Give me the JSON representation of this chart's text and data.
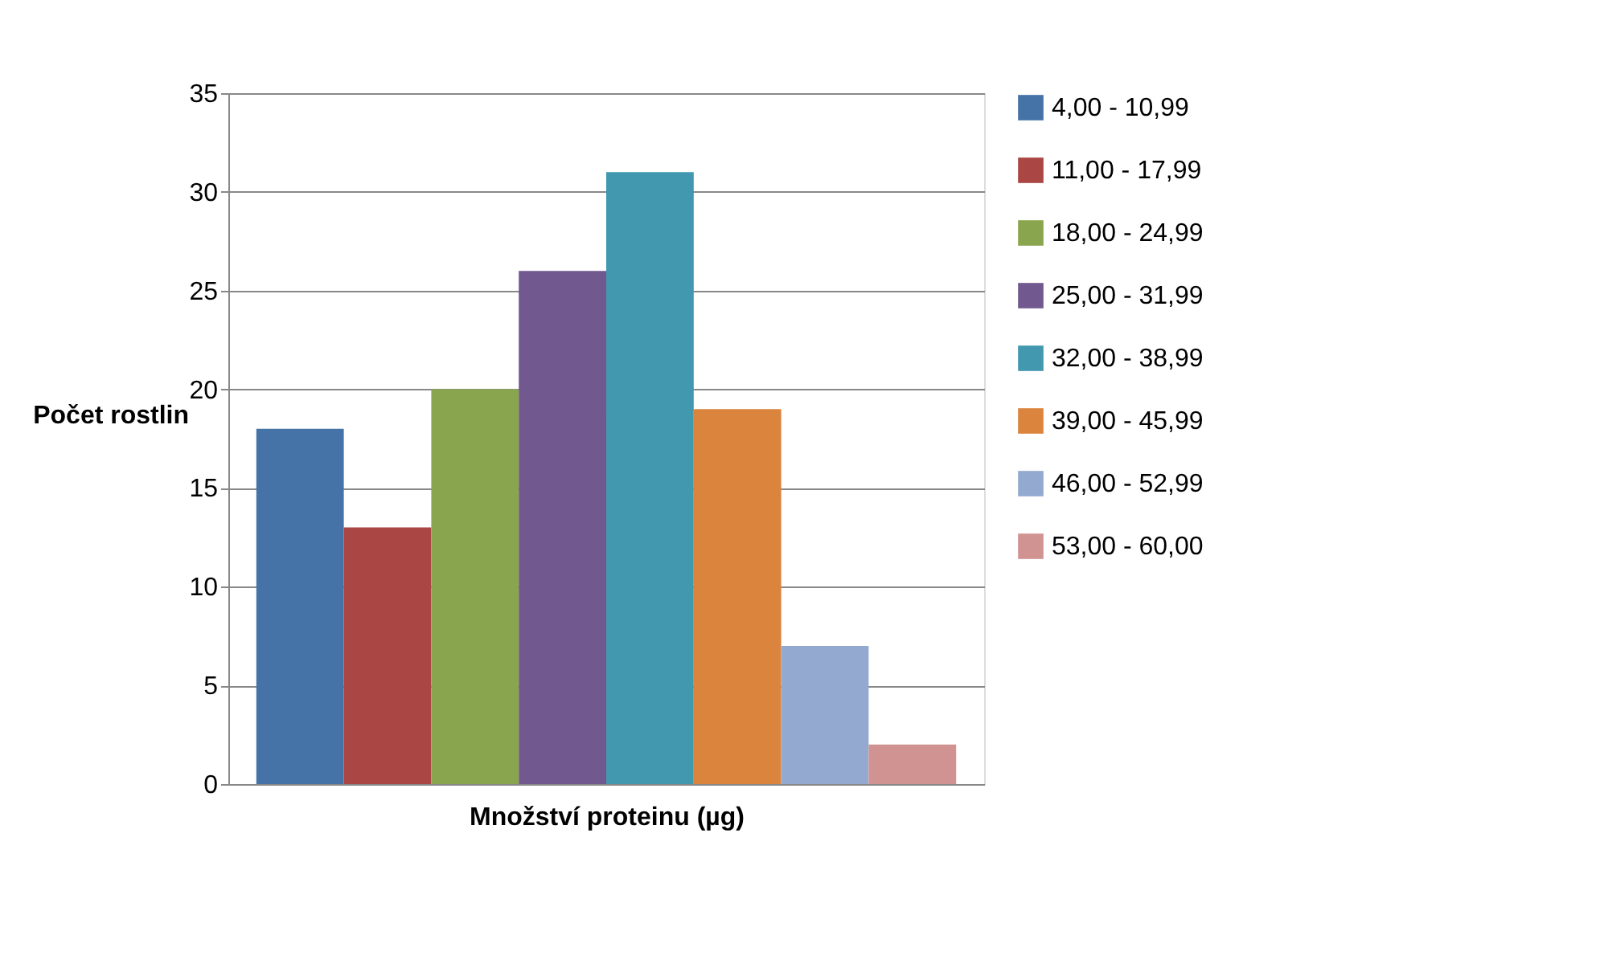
{
  "chart_data": {
    "type": "bar",
    "xlabel": "Množství proteinu (µg)",
    "ylabel": "Počet rostlin",
    "categories": [
      null
    ],
    "series": [
      {
        "name": "4,00 - 10,99",
        "color": "#4572a7",
        "values": [
          18
        ]
      },
      {
        "name": "11,00 - 17,99",
        "color": "#aa4643",
        "values": [
          13
        ]
      },
      {
        "name": "18,00 - 24,99",
        "color": "#89a54e",
        "values": [
          20
        ]
      },
      {
        "name": "25,00 - 31,99",
        "color": "#71588f",
        "values": [
          26
        ]
      },
      {
        "name": "32,00 - 38,99",
        "color": "#4198af",
        "values": [
          31
        ]
      },
      {
        "name": "39,00 - 45,99",
        "color": "#db843d",
        "values": [
          19
        ]
      },
      {
        "name": "46,00 - 52,99",
        "color": "#93a9cf",
        "values": [
          7
        ]
      },
      {
        "name": "53,00 - 60,00",
        "color": "#d19392",
        "values": [
          2
        ]
      }
    ],
    "ylim": [
      0,
      35
    ],
    "yticks": [
      0,
      5,
      10,
      15,
      20,
      25,
      30,
      35
    ],
    "grid": "y",
    "legend": "right"
  }
}
